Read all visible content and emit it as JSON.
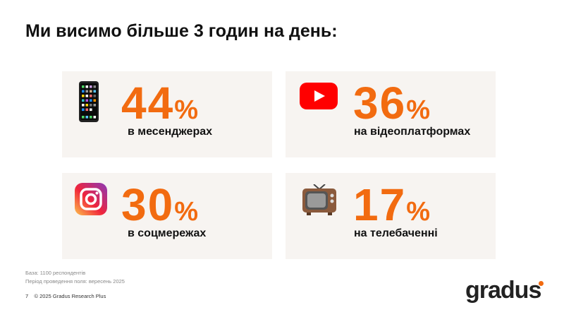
{
  "title": "Ми висимо більше 3 годин на день:",
  "accent": "#f26b10",
  "cards": [
    {
      "icon": "mobile-phone-icon",
      "value": "44",
      "unit": "%",
      "label": "в месенджерах"
    },
    {
      "icon": "youtube-icon",
      "value": "36",
      "unit": "%",
      "label": "на відеоплатформах"
    },
    {
      "icon": "instagram-icon",
      "value": "30",
      "unit": "%",
      "label": "в соцмережах"
    },
    {
      "icon": "television-icon",
      "value": "17",
      "unit": "%",
      "label": "на телебаченні"
    }
  ],
  "footer": {
    "base": "База: 1100 респондентів",
    "period": "Період проведення поля: вересень 2025",
    "page": "7",
    "copyright": "© 2025 Gradus Research Plus"
  },
  "logo": "gradus"
}
